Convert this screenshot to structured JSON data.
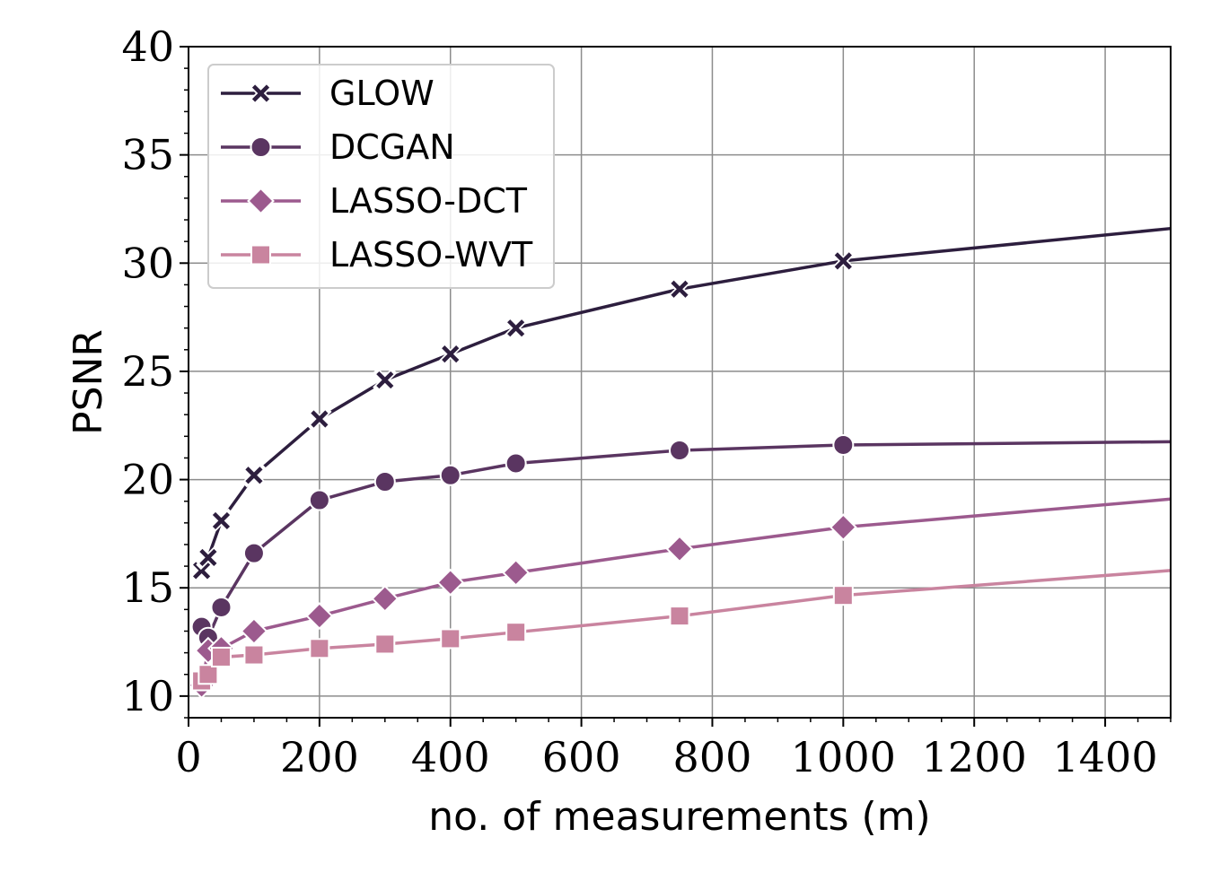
{
  "chart_data": {
    "type": "line",
    "title": "",
    "xlabel": "no. of measurements (m)",
    "ylabel": "PSNR",
    "xlim": [
      0,
      1500
    ],
    "ylim": [
      9,
      40
    ],
    "xticks": [
      0,
      200,
      400,
      600,
      800,
      1000,
      1200,
      1400
    ],
    "yticks": [
      10,
      15,
      20,
      25,
      30,
      35,
      40
    ],
    "xtick_labels": [
      "0",
      "200",
      "400",
      "600",
      "800",
      "1000",
      "1200",
      "1400"
    ],
    "ytick_labels": [
      "10",
      "15",
      "20",
      "25",
      "30",
      "35",
      "40"
    ],
    "grid": true,
    "legend_position": "top-left",
    "series": [
      {
        "name": "GLOW",
        "marker": "x",
        "color": "#2d1e3e",
        "x": [
          20,
          30,
          50,
          100,
          200,
          300,
          400,
          500,
          750,
          1000
        ],
        "y": [
          15.8,
          16.4,
          18.1,
          20.2,
          22.8,
          24.6,
          25.8,
          27.0,
          28.8,
          30.1
        ],
        "extends_to": {
          "x": 1500,
          "y": 31.6
        }
      },
      {
        "name": "DCGAN",
        "marker": "circle",
        "color": "#5a3561",
        "x": [
          20,
          30,
          50,
          100,
          200,
          300,
          400,
          500,
          750,
          1000
        ],
        "y": [
          13.2,
          12.7,
          14.1,
          16.6,
          19.05,
          19.9,
          20.2,
          20.75,
          21.35,
          21.6
        ],
        "extends_to": {
          "x": 1500,
          "y": 21.75
        }
      },
      {
        "name": "LASSO-DCT",
        "marker": "diamond",
        "color": "#9c5a8e",
        "x": [
          20,
          30,
          50,
          100,
          200,
          300,
          400,
          500,
          750,
          1000
        ],
        "y": [
          10.5,
          12.1,
          12.2,
          13.0,
          13.7,
          14.5,
          15.25,
          15.7,
          16.8,
          17.8
        ],
        "extends_to": {
          "x": 1500,
          "y": 19.1
        }
      },
      {
        "name": "LASSO-WVT",
        "marker": "square",
        "color": "#c9849f",
        "x": [
          20,
          30,
          50,
          100,
          200,
          300,
          400,
          500,
          750,
          1000
        ],
        "y": [
          10.7,
          11.0,
          11.8,
          11.9,
          12.2,
          12.4,
          12.65,
          12.95,
          13.7,
          14.65
        ],
        "extends_to": {
          "x": 1500,
          "y": 15.8
        }
      }
    ]
  }
}
